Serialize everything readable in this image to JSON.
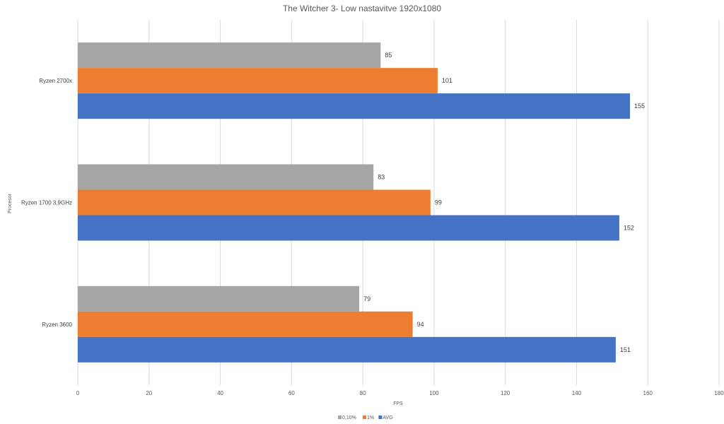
{
  "chart_data": {
    "type": "bar",
    "orientation": "horizontal",
    "title": "The Witcher 3- Low nastavitve 1920x1080",
    "xlabel": "FPS",
    "ylabel": "Procesor",
    "xlim": [
      0,
      180
    ],
    "xticks": [
      0,
      20,
      40,
      60,
      80,
      100,
      120,
      140,
      160,
      180
    ],
    "categories": [
      "Ryzen 2700x",
      "Ryzen 1700 3,9GHz",
      "Ryzen 3600"
    ],
    "series": [
      {
        "name": "0,10%",
        "color": "#a5a5a5",
        "values": [
          85,
          83,
          79
        ]
      },
      {
        "name": "1%",
        "color": "#ed7d31",
        "values": [
          101,
          99,
          94
        ]
      },
      {
        "name": "AVG",
        "color": "#4472c4",
        "values": [
          155,
          152,
          151
        ]
      }
    ],
    "grid": true,
    "legend_position": "bottom",
    "data_labels": true
  }
}
